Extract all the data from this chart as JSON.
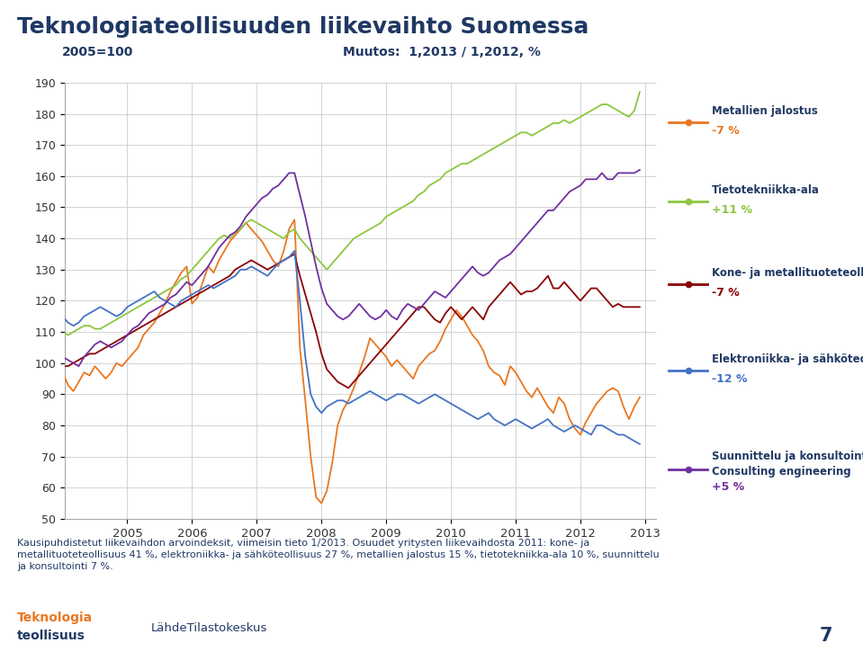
{
  "title": "Teknologiateollisuuden liikevaihto Suomessa",
  "subtitle_left": "2005=100",
  "subtitle_right": "Muutos:  1,2013 / 1,2012, %",
  "ylim": [
    50,
    190
  ],
  "yticks": [
    50,
    60,
    70,
    80,
    90,
    100,
    110,
    120,
    130,
    140,
    150,
    160,
    170,
    180,
    190
  ],
  "background_color": "#ffffff",
  "grid_color": "#cccccc",
  "legend_entries": [
    {
      "name": "Metallien jalostus",
      "change": "-7 %",
      "color": "#E87722",
      "change_color": "#E87722"
    },
    {
      "name": "Tietotekniikka-ala",
      "change": "+11 %",
      "color": "#8DC63F",
      "change_color": "#8DC63F"
    },
    {
      "name": "Kone- ja metallituoteteollisuus",
      "change": "-7 %",
      "color": "#8B0000",
      "change_color": "#8B0000"
    },
    {
      "name": "Elektroniikka- ja sähköteollisuus",
      "change": "-12 %",
      "color": "#4472C4",
      "change_color": "#4472C4"
    },
    {
      "name": "Suunnittelu ja konsultointi /\nConsulting engineering",
      "change": "+5 %",
      "color": "#7030A0",
      "change_color": "#7030A0"
    }
  ],
  "footnote": "Kausipuhdistetut liikevaihdon arvoindeksit, viimeisin tieto 1/2013. Osuudet yritysten liikevaihdosta 2011: kone- ja\nmetallituoteteollisuus 41 %, elektroniikka- ja sähköteollisuus 27 %, metallien jalostus 15 %, tietotekniikka-ala 10 %, suunnittelu\nja konsultointi 7 %.",
  "source": "LähdeTilastokeskus",
  "page": "7",
  "metallien_jalostus": [
    97,
    93,
    91,
    94,
    97,
    96,
    99,
    97,
    95,
    97,
    100,
    99,
    101,
    103,
    105,
    109,
    111,
    113,
    116,
    119,
    123,
    126,
    129,
    131,
    119,
    121,
    126,
    131,
    129,
    133,
    136,
    139,
    141,
    143,
    145,
    143,
    141,
    139,
    136,
    133,
    131,
    136,
    143,
    146,
    105,
    88,
    70,
    57,
    55,
    59,
    68,
    80,
    85,
    88,
    92,
    97,
    102,
    108,
    106,
    104,
    102,
    99,
    101,
    99,
    97,
    95,
    99,
    101,
    103,
    104,
    107,
    111,
    114,
    117,
    115,
    112,
    109,
    107,
    104,
    99,
    97,
    96,
    93,
    99,
    97,
    94,
    91,
    89,
    92,
    89,
    86,
    84,
    89,
    87,
    82,
    79,
    77,
    81,
    84,
    87,
    89,
    91,
    92,
    91,
    86,
    82,
    86,
    89
  ],
  "tietotekniikka_ala": [
    110,
    109,
    110,
    111,
    112,
    112,
    111,
    111,
    112,
    113,
    114,
    115,
    116,
    117,
    118,
    119,
    120,
    121,
    122,
    123,
    124,
    125,
    127,
    128,
    130,
    132,
    134,
    136,
    138,
    140,
    141,
    140,
    142,
    143,
    145,
    146,
    145,
    144,
    143,
    142,
    141,
    140,
    142,
    143,
    140,
    138,
    136,
    134,
    132,
    130,
    132,
    134,
    136,
    138,
    140,
    141,
    142,
    143,
    144,
    145,
    147,
    148,
    149,
    150,
    151,
    152,
    154,
    155,
    157,
    158,
    159,
    161,
    162,
    163,
    164,
    164,
    165,
    166,
    167,
    168,
    169,
    170,
    171,
    172,
    173,
    174,
    174,
    173,
    174,
    175,
    176,
    177,
    177,
    178,
    177,
    178,
    179,
    180,
    181,
    182,
    183,
    183,
    182,
    181,
    180,
    179,
    181,
    187
  ],
  "kone_ja_metalli": [
    99,
    99,
    100,
    101,
    102,
    103,
    103,
    104,
    105,
    106,
    107,
    108,
    109,
    110,
    111,
    112,
    113,
    114,
    115,
    116,
    117,
    118,
    119,
    120,
    121,
    122,
    123,
    124,
    125,
    126,
    127,
    128,
    130,
    131,
    132,
    133,
    132,
    131,
    130,
    131,
    132,
    133,
    134,
    135,
    128,
    122,
    116,
    110,
    103,
    98,
    96,
    94,
    93,
    92,
    94,
    96,
    98,
    100,
    102,
    104,
    106,
    108,
    110,
    112,
    114,
    116,
    118,
    118,
    116,
    114,
    113,
    116,
    118,
    116,
    114,
    116,
    118,
    116,
    114,
    118,
    120,
    122,
    124,
    126,
    124,
    122,
    123,
    123,
    124,
    126,
    128,
    124,
    124,
    126,
    124,
    122,
    120,
    122,
    124,
    124,
    122,
    120,
    118,
    119,
    118,
    118,
    118,
    118
  ],
  "elektroniikka": [
    115,
    113,
    112,
    113,
    115,
    116,
    117,
    118,
    117,
    116,
    115,
    116,
    118,
    119,
    120,
    121,
    122,
    123,
    121,
    120,
    119,
    118,
    120,
    121,
    122,
    123,
    124,
    125,
    124,
    125,
    126,
    127,
    128,
    130,
    130,
    131,
    130,
    129,
    128,
    130,
    132,
    133,
    134,
    136,
    120,
    102,
    90,
    86,
    84,
    86,
    87,
    88,
    88,
    87,
    88,
    89,
    90,
    91,
    90,
    89,
    88,
    89,
    90,
    90,
    89,
    88,
    87,
    88,
    89,
    90,
    89,
    88,
    87,
    86,
    85,
    84,
    83,
    82,
    83,
    84,
    82,
    81,
    80,
    81,
    82,
    81,
    80,
    79,
    80,
    81,
    82,
    80,
    79,
    78,
    79,
    80,
    79,
    78,
    77,
    80,
    80,
    79,
    78,
    77,
    77,
    76,
    75,
    74
  ],
  "konsultointi": [
    102,
    101,
    100,
    99,
    102,
    104,
    106,
    107,
    106,
    105,
    106,
    107,
    109,
    111,
    112,
    114,
    116,
    117,
    118,
    119,
    121,
    122,
    124,
    126,
    125,
    127,
    129,
    131,
    134,
    137,
    139,
    141,
    142,
    144,
    147,
    149,
    151,
    153,
    154,
    156,
    157,
    159,
    161,
    161,
    154,
    147,
    139,
    131,
    124,
    119,
    117,
    115,
    114,
    115,
    117,
    119,
    117,
    115,
    114,
    115,
    117,
    115,
    114,
    117,
    119,
    118,
    117,
    119,
    121,
    123,
    122,
    121,
    123,
    125,
    127,
    129,
    131,
    129,
    128,
    129,
    131,
    133,
    134,
    135,
    137,
    139,
    141,
    143,
    145,
    147,
    149,
    149,
    151,
    153,
    155,
    156,
    157,
    159,
    159,
    159,
    161,
    159,
    159,
    161,
    161,
    161,
    161,
    162
  ]
}
